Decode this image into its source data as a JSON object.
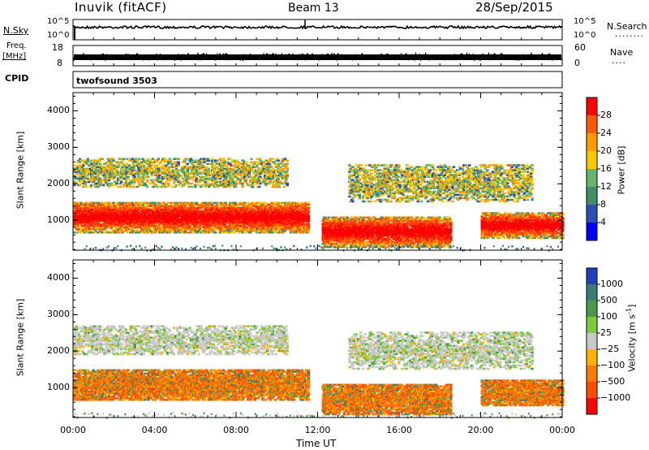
{
  "header": {
    "station": "Inuvik (fitACF)",
    "beam": "Beam 13",
    "date": "28/Sep/2015"
  },
  "sky_panel": {
    "left_label": "N.Sky",
    "left_ticks": [
      "10^5",
      "10^0"
    ],
    "right_ticks": [
      "10^5",
      "10^0"
    ],
    "right_label": "N.Search",
    "right_dots": "........"
  },
  "freq_panel": {
    "left_label_1": "Freq.",
    "left_label_2": "[MHz]",
    "left_ticks": [
      "18",
      "8"
    ],
    "right_ticks": [
      "60",
      "0"
    ],
    "right_label": "Nave",
    "right_dots": "....",
    "cpid_label": "CPID",
    "cpid_value": "twofsound 3503"
  },
  "chart_data": [
    {
      "type": "heatmap",
      "title": "",
      "xlabel": "",
      "ylabel": "Slant Range [km]",
      "x_ticks": [
        "00:00",
        "04:00",
        "08:00",
        "12:00",
        "16:00",
        "20:00",
        "00:00"
      ],
      "y_ticks": [
        "1000",
        "2000",
        "3000",
        "4000"
      ],
      "ylim": [
        180,
        4500
      ],
      "colorbar": {
        "label": "Power [dB]",
        "ticks": [
          "4",
          "8",
          "12",
          "16",
          "20",
          "24",
          "28"
        ],
        "range": [
          0,
          32
        ],
        "colors": [
          "#0000ff",
          "#2a4fb0",
          "#3f8f6a",
          "#6bb36a",
          "#f5c800",
          "#ff9a00",
          "#ff5a00",
          "#ff0000"
        ]
      },
      "echo_regions": [
        {
          "t0": 0.0,
          "t1": 11.5,
          "r0": 650,
          "r1": 1500,
          "level": "strong"
        },
        {
          "t0": 0.0,
          "t1": 10.5,
          "r0": 1900,
          "r1": 2700,
          "level": "weak"
        },
        {
          "t0": 12.2,
          "t1": 18.5,
          "r0": 250,
          "r1": 1100,
          "level": "strong"
        },
        {
          "t0": 13.5,
          "t1": 22.5,
          "r0": 1500,
          "r1": 2500,
          "level": "weak"
        },
        {
          "t0": 20.0,
          "t1": 24.0,
          "r0": 500,
          "r1": 1200,
          "level": "strong"
        }
      ]
    },
    {
      "type": "heatmap",
      "title": "",
      "xlabel": "Time UT",
      "ylabel": "Slant Range [km]",
      "x_ticks": [
        "00:00",
        "04:00",
        "08:00",
        "12:00",
        "16:00",
        "20:00",
        "00:00"
      ],
      "y_ticks": [
        "1000",
        "2000",
        "3000",
        "4000"
      ],
      "ylim": [
        180,
        4500
      ],
      "colorbar": {
        "label_main": "Velocity",
        "label_unit": "[m s",
        "label_exp": "-1",
        "label_end": "]",
        "ticks": [
          "1000",
          "500",
          "100",
          "25",
          "−25",
          "−100",
          "−500",
          "−1000"
        ],
        "colors": [
          "#1f3fbf",
          "#3d7a7a",
          "#4a9a4a",
          "#7fc93f",
          "#c8c8c8",
          "#ffb300",
          "#ff7a00",
          "#ff4a00",
          "#ff0000"
        ]
      },
      "echo_regions": [
        {
          "t0": 0.0,
          "t1": 11.5,
          "r0": 650,
          "r1": 1500,
          "level": "negative"
        },
        {
          "t0": 0.0,
          "t1": 10.5,
          "r0": 1900,
          "r1": 2700,
          "level": "ground"
        },
        {
          "t0": 12.2,
          "t1": 18.5,
          "r0": 250,
          "r1": 1100,
          "level": "negative"
        },
        {
          "t0": 13.5,
          "t1": 22.5,
          "r0": 1500,
          "r1": 2500,
          "level": "ground"
        },
        {
          "t0": 20.0,
          "t1": 24.0,
          "r0": 500,
          "r1": 1200,
          "level": "negative"
        }
      ]
    }
  ]
}
